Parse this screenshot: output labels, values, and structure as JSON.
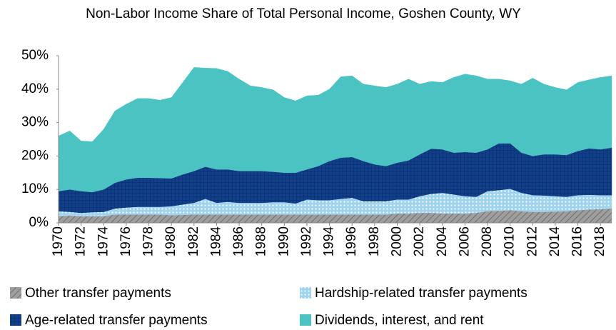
{
  "chart_data": {
    "type": "stacked_area",
    "title": "Non-Labor Income Share of Total Personal Income, Goshen County, WY",
    "x": [
      1970,
      1971,
      1972,
      1973,
      1974,
      1975,
      1976,
      1977,
      1978,
      1979,
      1980,
      1981,
      1982,
      1983,
      1984,
      1985,
      1986,
      1987,
      1988,
      1989,
      1990,
      1991,
      1992,
      1993,
      1994,
      1995,
      1996,
      1997,
      1998,
      1999,
      2000,
      2001,
      2002,
      2003,
      2004,
      2005,
      2006,
      2007,
      2008,
      2009,
      2010,
      2011,
      2012,
      2013,
      2014,
      2015,
      2016,
      2017,
      2018,
      2019
    ],
    "xlim": [
      1970,
      2019
    ],
    "xticks": [
      1970,
      1972,
      1974,
      1976,
      1978,
      1980,
      1982,
      1984,
      1986,
      1988,
      1990,
      1992,
      1994,
      1996,
      1998,
      2000,
      2002,
      2004,
      2006,
      2008,
      2010,
      2012,
      2014,
      2016,
      2018
    ],
    "ylim": [
      0,
      50
    ],
    "yticks": [
      {
        "value": 0,
        "label": "0%"
      },
      {
        "value": 10,
        "label": "10%"
      },
      {
        "value": 20,
        "label": "20%"
      },
      {
        "value": 30,
        "label": "30%"
      },
      {
        "value": 40,
        "label": "40%"
      },
      {
        "value": 50,
        "label": "50%"
      }
    ],
    "series": [
      {
        "name": "Other transfer payments",
        "color": "#9e9e9e",
        "values": [
          2,
          2.2,
          2,
          2,
          2,
          2.5,
          2.5,
          2.5,
          2.5,
          2.5,
          2.3,
          2.4,
          2.5,
          2.5,
          2.5,
          2.5,
          2.5,
          2.5,
          2.5,
          2.5,
          2.5,
          2.5,
          2.5,
          2.5,
          2.5,
          2.5,
          2.5,
          2.5,
          2.5,
          2.5,
          2.8,
          2.8,
          3,
          3,
          2.8,
          2.8,
          2.8,
          3,
          3.5,
          3.6,
          3.8,
          3.5,
          3.3,
          3.3,
          3.4,
          3.5,
          3.8,
          4,
          4.1,
          4.3
        ]
      },
      {
        "name": "Hardship-related transfer payments",
        "color": "#9fd3ee",
        "values": [
          1.5,
          1.1,
          1.0,
          1.2,
          1.3,
          1.8,
          2.1,
          2.3,
          2.3,
          2.3,
          2.7,
          3.1,
          3.5,
          4.7,
          3.5,
          3.8,
          3.5,
          3.5,
          3.5,
          3.7,
          3.7,
          3.3,
          4.5,
          4.3,
          4.3,
          4.7,
          5.0,
          4.0,
          4.0,
          4.0,
          4.2,
          4.2,
          5.0,
          5.7,
          6.2,
          5.7,
          5.2,
          4.8,
          6.0,
          6.2,
          6.4,
          5.5,
          5.0,
          4.9,
          4.6,
          4.3,
          4.5,
          4.4,
          4.2,
          4.0
        ]
      },
      {
        "name": "Age-related transfer payments",
        "color": "#123f8a",
        "values": [
          6.0,
          6.7,
          6.5,
          6.0,
          6.7,
          7.7,
          8.4,
          8.7,
          8.7,
          8.6,
          8.3,
          9.0,
          9.5,
          9.6,
          10.0,
          9.7,
          9.5,
          9.5,
          9.5,
          9.1,
          8.8,
          9.2,
          9.0,
          10.2,
          11.7,
          12.3,
          12.2,
          12.0,
          11.0,
          10.5,
          11.0,
          11.7,
          12.5,
          13.5,
          13.0,
          12.5,
          13.2,
          13.2,
          12.5,
          14.0,
          13.6,
          12.0,
          11.7,
          12.3,
          12.5,
          12.5,
          13.2,
          13.9,
          13.7,
          14.2
        ]
      },
      {
        "name": "Dividends, interest, and rent",
        "color": "#4cc3c3",
        "values": [
          16.5,
          17.5,
          15.0,
          15.1,
          18.0,
          21.5,
          22.5,
          23.7,
          23.7,
          23.3,
          24.2,
          27.5,
          31.0,
          29.5,
          30.2,
          29.3,
          27.5,
          25.5,
          25.0,
          24.5,
          22.5,
          21.5,
          22.0,
          21.2,
          21.5,
          24.2,
          24.3,
          23.0,
          23.5,
          23.5,
          23.5,
          24.3,
          21.0,
          20.1,
          20.0,
          22.5,
          23.3,
          23.0,
          21.0,
          19.2,
          18.7,
          20.5,
          23.3,
          21.0,
          20.0,
          19.5,
          20.5,
          20.5,
          21.5,
          21.5
        ]
      }
    ]
  }
}
